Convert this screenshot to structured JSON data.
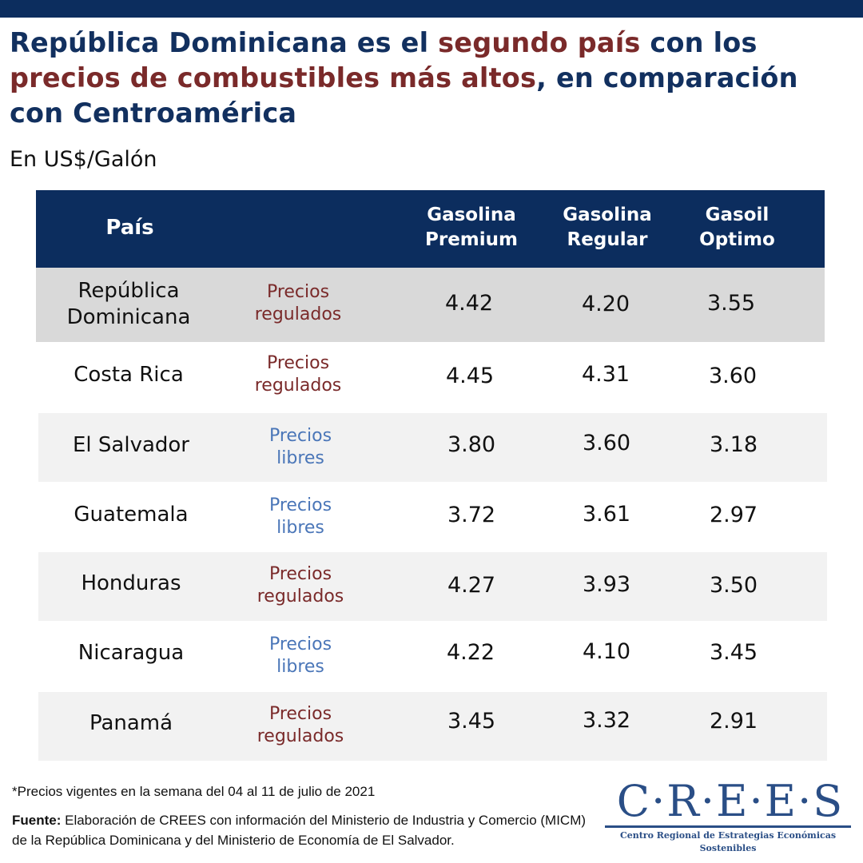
{
  "title": {
    "part1": "República Dominicana es el ",
    "highlight1": "segundo país",
    "part2": " con los ",
    "highlight2": "precios de combustibles más altos",
    "part3": ", en comparación con Centroamérica"
  },
  "subtitle": "En US$/Galón",
  "table": {
    "headers": {
      "country": "País",
      "col1_line1": "Gasolina",
      "col1_line2": "Premium",
      "col2_line1": "Gasolina",
      "col2_line2": "Regular",
      "col3_line1": "Gasoil",
      "col3_line2": "Optimo"
    },
    "rows": [
      {
        "country_line1": "República",
        "country_line2": "Dominicana",
        "regime_line1": "Precios",
        "regime_line2": "regulados",
        "premium": "4.42",
        "regular": "4.20",
        "gasoil": "3.55"
      },
      {
        "country_line1": "Costa Rica",
        "country_line2": "",
        "regime_line1": "Precios",
        "regime_line2": "regulados",
        "premium": "4.45",
        "regular": "4.31",
        "gasoil": "3.60"
      },
      {
        "country_line1": "El Salvador",
        "country_line2": "",
        "regime_line1": "Precios",
        "regime_line2": "libres",
        "premium": "3.80",
        "regular": "3.60",
        "gasoil": "3.18"
      },
      {
        "country_line1": "Guatemala",
        "country_line2": "",
        "regime_line1": "Precios",
        "regime_line2": "libres",
        "premium": "3.72",
        "regular": "3.61",
        "gasoil": "2.97"
      },
      {
        "country_line1": "Honduras",
        "country_line2": "",
        "regime_line1": "Precios",
        "regime_line2": "regulados",
        "premium": "4.27",
        "regular": "3.93",
        "gasoil": "3.50"
      },
      {
        "country_line1": "Nicaragua",
        "country_line2": "",
        "regime_line1": "Precios",
        "regime_line2": "libres",
        "premium": "4.22",
        "regular": "4.10",
        "gasoil": "3.45"
      },
      {
        "country_line1": "Panamá",
        "country_line2": "",
        "regime_line1": "Precios",
        "regime_line2": "regulados",
        "premium": "3.45",
        "regular": "3.32",
        "gasoil": "2.91"
      }
    ]
  },
  "footnote": "*Precios vigentes en la semana del 04 al 11 de julio de 2021",
  "source": {
    "label": "Fuente:",
    "text": " Elaboración de CREES con información del Ministerio de Industria y Comercio (MICM) de la República Dominicana y del  Ministerio de Economía de El Salvador."
  },
  "logo": {
    "wordmark": "C·R·E·E·S",
    "tagline": "Centro Regional de Estrategias Económicas Sostenibles"
  },
  "colors": {
    "navy": "#0c2d5e",
    "maroon": "#7a2a2a",
    "libres_blue": "#4a76b8",
    "row_shade": "#f2f2f2",
    "first_row_shade": "#d9d9d9"
  }
}
